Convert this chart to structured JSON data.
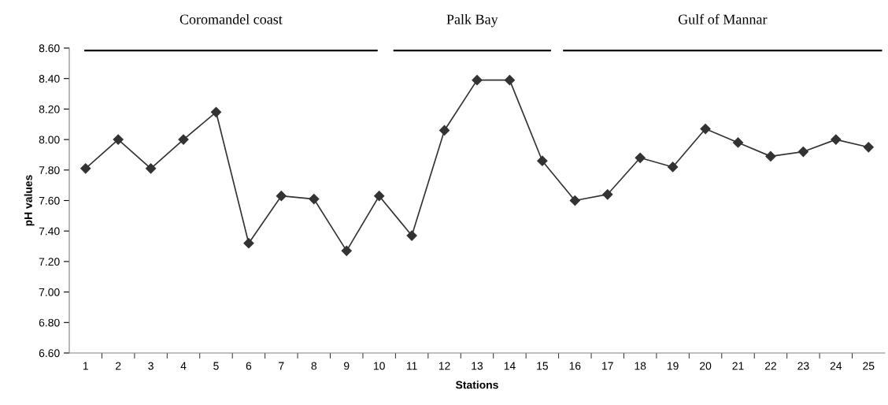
{
  "chart_data": {
    "type": "line",
    "xlabel": "Stations",
    "ylabel": "pH values",
    "categories": [
      "1",
      "2",
      "3",
      "4",
      "5",
      "6",
      "7",
      "8",
      "9",
      "10",
      "11",
      "12",
      "13",
      "14",
      "15",
      "16",
      "17",
      "18",
      "19",
      "20",
      "21",
      "22",
      "23",
      "24",
      "25"
    ],
    "series": [
      {
        "color": "#333333",
        "values": [
          7.81,
          8.0,
          7.81,
          8.0,
          8.18,
          7.32,
          7.63,
          7.61,
          7.27,
          7.63,
          7.37,
          8.06,
          8.39,
          8.39,
          7.86,
          7.6,
          7.64,
          7.88,
          7.82,
          8.07,
          7.98,
          7.89,
          7.92,
          8.0,
          7.95
        ]
      }
    ],
    "ylim": [
      6.6,
      8.6
    ],
    "yticks": [
      {
        "value": 6.6,
        "label": "6.60"
      },
      {
        "value": 6.8,
        "label": "6.80"
      },
      {
        "value": 7.0,
        "label": "7.00"
      },
      {
        "value": 7.2,
        "label": "7.20"
      },
      {
        "value": 7.4,
        "label": "7.40"
      },
      {
        "value": 7.6,
        "label": "7.60"
      },
      {
        "value": 7.8,
        "label": "7.80"
      },
      {
        "value": 8.0,
        "label": "8.00"
      },
      {
        "value": 8.2,
        "label": "8.20"
      },
      {
        "value": 8.4,
        "label": "8.40"
      },
      {
        "value": 8.6,
        "label": "8.60"
      }
    ],
    "marker": "diamond",
    "line_style": "solid",
    "grid": false,
    "legend": false,
    "annotations": [
      "Coromandel coast",
      "Palk Bay",
      "Gulf of Mannar"
    ]
  }
}
